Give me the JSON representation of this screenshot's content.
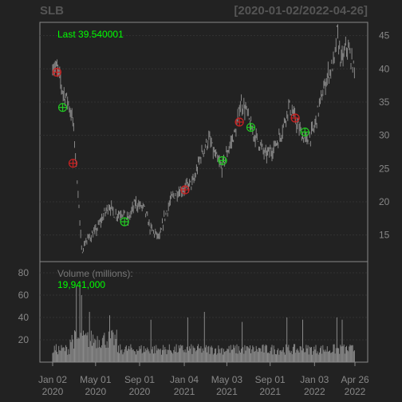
{
  "chart_data": [
    {
      "type": "candlestick",
      "symbol": "SLB",
      "title": "SLB",
      "date_range": "[2020-01-02/2022-04-26]",
      "last_label": "Last 39.540001",
      "ylim": [
        11,
        47
      ],
      "y_ticks": [
        15,
        20,
        25,
        30,
        35,
        40,
        45
      ],
      "grid": true,
      "price_path": [
        [
          "2020-01-02",
          40.5
        ],
        [
          "2020-01-15",
          40.0
        ],
        [
          "2020-01-31",
          36.5
        ],
        [
          "2020-02-14",
          35.2
        ],
        [
          "2020-02-28",
          32.0
        ],
        [
          "2020-03-09",
          25.0
        ],
        [
          "2020-03-16",
          19.0
        ],
        [
          "2020-03-23",
          12.5
        ],
        [
          "2020-04-03",
          14.0
        ],
        [
          "2020-04-20",
          15.0
        ],
        [
          "2020-05-01",
          15.5
        ],
        [
          "2020-05-15",
          17.0
        ],
        [
          "2020-06-08",
          19.5
        ],
        [
          "2020-06-25",
          18.0
        ],
        [
          "2020-07-15",
          18.5
        ],
        [
          "2020-07-31",
          17.2
        ],
        [
          "2020-08-20",
          19.8
        ],
        [
          "2020-09-15",
          19.0
        ],
        [
          "2020-10-01",
          16.0
        ],
        [
          "2020-10-28",
          14.5
        ],
        [
          "2020-11-09",
          17.5
        ],
        [
          "2020-11-30",
          20.5
        ],
        [
          "2020-12-15",
          21.5
        ],
        [
          "2021-01-04",
          22.0
        ],
        [
          "2021-01-31",
          23.0
        ],
        [
          "2021-02-20",
          27.0
        ],
        [
          "2021-03-15",
          29.5
        ],
        [
          "2021-03-31",
          27.0
        ],
        [
          "2021-04-20",
          25.0
        ],
        [
          "2021-05-05",
          27.5
        ],
        [
          "2021-05-31",
          31.0
        ],
        [
          "2021-06-10",
          35.0
        ],
        [
          "2021-06-25",
          34.0
        ],
        [
          "2021-07-15",
          30.5
        ],
        [
          "2021-08-01",
          29.0
        ],
        [
          "2021-08-20",
          27.0
        ],
        [
          "2021-09-10",
          28.0
        ],
        [
          "2021-10-01",
          30.0
        ],
        [
          "2021-10-25",
          34.5
        ],
        [
          "2021-11-10",
          32.5
        ],
        [
          "2021-11-30",
          30.0
        ],
        [
          "2021-12-15",
          29.0
        ],
        [
          "2022-01-03",
          31.0
        ],
        [
          "2022-01-20",
          35.0
        ],
        [
          "2022-02-10",
          39.0
        ],
        [
          "2022-03-01",
          41.0
        ],
        [
          "2022-03-08",
          45.5
        ],
        [
          "2022-03-20",
          41.0
        ],
        [
          "2022-04-05",
          43.5
        ],
        [
          "2022-04-20",
          41.0
        ],
        [
          "2022-04-26",
          39.54
        ]
      ],
      "markers": [
        {
          "date": "2020-01-14",
          "price": 39.5,
          "kind": "sell",
          "color": "#cc2222"
        },
        {
          "date": "2020-01-30",
          "price": 34.2,
          "kind": "buy",
          "color": "#22cc22"
        },
        {
          "date": "2020-02-28",
          "price": 25.8,
          "kind": "sell",
          "color": "#cc2222"
        },
        {
          "date": "2020-07-21",
          "price": 17.0,
          "kind": "buy",
          "color": "#22cc22"
        },
        {
          "date": "2021-01-06",
          "price": 21.8,
          "kind": "sell",
          "color": "#cc2222"
        },
        {
          "date": "2021-04-21",
          "price": 26.2,
          "kind": "buy",
          "color": "#22cc22"
        },
        {
          "date": "2021-06-07",
          "price": 32.0,
          "kind": "sell",
          "color": "#cc2222"
        },
        {
          "date": "2021-07-09",
          "price": 31.2,
          "kind": "buy",
          "color": "#22cc22"
        },
        {
          "date": "2021-11-10",
          "price": 32.6,
          "kind": "sell",
          "color": "#cc2222"
        },
        {
          "date": "2021-12-07",
          "price": 30.5,
          "kind": "buy",
          "color": "#22cc22"
        }
      ],
      "colors": {
        "background": "#222222",
        "panel_border": "#888888",
        "grid": "#333333",
        "price": "#888888",
        "axis_text": "#888888",
        "label_green": "#00ff00",
        "title": "#555555"
      }
    },
    {
      "type": "bar",
      "title": "Volume (millions):",
      "last_label": "19,941,000",
      "ylim": [
        0,
        90
      ],
      "y_ticks": [
        20,
        40,
        60,
        80
      ],
      "baseline_millions": 12,
      "spikes": [
        [
          "2020-03-09",
          68
        ],
        [
          "2020-03-12",
          85
        ],
        [
          "2020-03-19",
          72
        ],
        [
          "2020-03-24",
          60
        ],
        [
          "2020-04-15",
          45
        ],
        [
          "2020-06-10",
          42
        ],
        [
          "2020-10-02",
          38
        ],
        [
          "2021-01-14",
          40
        ],
        [
          "2021-03-01",
          45
        ],
        [
          "2021-06-15",
          36
        ],
        [
          "2021-10-20",
          40
        ],
        [
          "2021-12-03",
          38
        ],
        [
          "2022-03-08",
          40
        ],
        [
          "2022-03-22",
          38
        ]
      ],
      "x_ticks": [
        {
          "date": "2020-01-02",
          "label": "Jan 02\n2020"
        },
        {
          "date": "2020-05-01",
          "label": "May 01\n2020"
        },
        {
          "date": "2020-09-01",
          "label": "Sep 01\n2020"
        },
        {
          "date": "2021-01-04",
          "label": "Jan 04\n2021"
        },
        {
          "date": "2021-05-03",
          "label": "May 03\n2021"
        },
        {
          "date": "2021-09-01",
          "label": "Sep 01\n2021"
        },
        {
          "date": "2022-01-03",
          "label": "Jan 03\n2022"
        },
        {
          "date": "2022-04-26",
          "label": "Apr 26\n2022"
        }
      ]
    }
  ]
}
